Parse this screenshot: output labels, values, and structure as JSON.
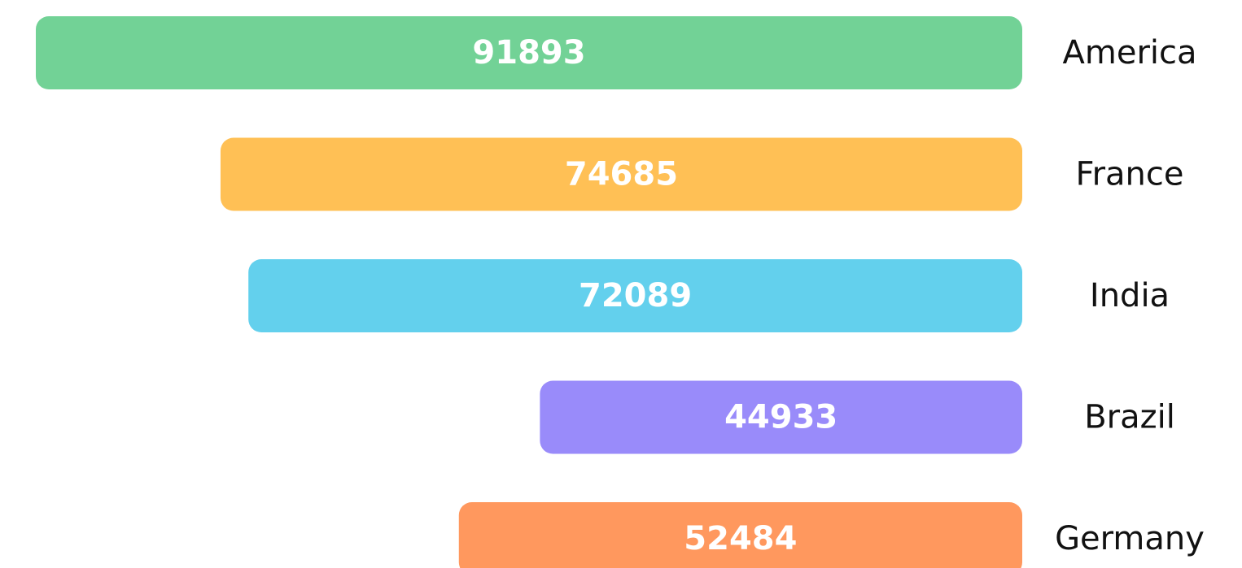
{
  "chart_data": {
    "type": "bar",
    "orientation": "horizontal",
    "categories": [
      "America",
      "France",
      "India",
      "Brazil",
      "Germany"
    ],
    "values": [
      91893,
      74685,
      72089,
      44933,
      52484
    ],
    "colors": [
      "#72d296",
      "#ffc055",
      "#63d0ed",
      "#998bfa",
      "#ff985e"
    ]
  }
}
